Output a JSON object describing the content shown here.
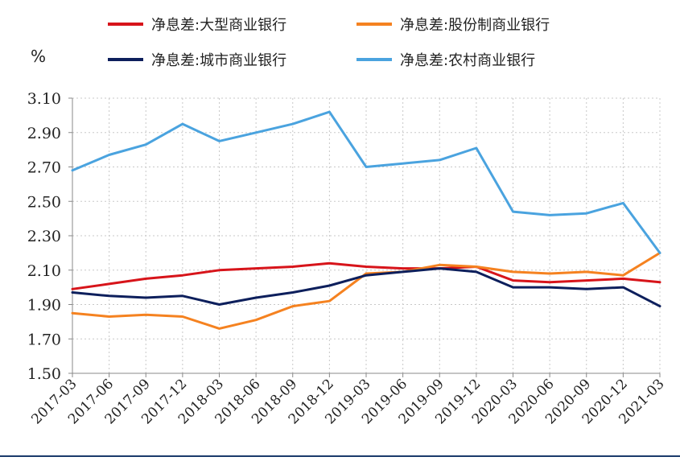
{
  "chart_data": {
    "type": "line",
    "unit": "%",
    "ylim": [
      1.5,
      3.1
    ],
    "yticks": [
      "3.10",
      "2.90",
      "2.70",
      "2.50",
      "2.30",
      "2.10",
      "1.90",
      "1.70",
      "1.50"
    ],
    "ytick_values": [
      3.1,
      2.9,
      2.7,
      2.5,
      2.3,
      2.1,
      1.9,
      1.7,
      1.5
    ],
    "categories": [
      "2017-03",
      "2017-06",
      "2017-09",
      "2017-12",
      "2018-03",
      "2018-06",
      "2018-09",
      "2018-12",
      "2019-03",
      "2019-06",
      "2019-09",
      "2019-12",
      "2020-03",
      "2020-06",
      "2020-09",
      "2020-12",
      "2021-03"
    ],
    "grid": true,
    "legend_placement": "top",
    "series": [
      {
        "name": "净息差:大型商业银行",
        "color": "#d7141a",
        "values": [
          1.99,
          2.02,
          2.05,
          2.07,
          2.1,
          2.11,
          2.12,
          2.14,
          2.12,
          2.11,
          2.11,
          2.12,
          2.04,
          2.03,
          2.04,
          2.05,
          2.03
        ]
      },
      {
        "name": "净息差:股份制商业银行",
        "color": "#f58220",
        "values": [
          1.85,
          1.83,
          1.84,
          1.83,
          1.76,
          1.81,
          1.89,
          1.92,
          2.08,
          2.09,
          2.13,
          2.12,
          2.09,
          2.08,
          2.09,
          2.07,
          2.2
        ]
      },
      {
        "name": "净息差:城市商业银行",
        "color": "#0d1f5c",
        "values": [
          1.97,
          1.95,
          1.94,
          1.95,
          1.9,
          1.94,
          1.97,
          2.01,
          2.07,
          2.09,
          2.11,
          2.09,
          2.0,
          2.0,
          1.99,
          2.0,
          1.89
        ]
      },
      {
        "name": "净息差:农村商业银行",
        "color": "#4aa3df",
        "values": [
          2.68,
          2.77,
          2.83,
          2.95,
          2.85,
          2.9,
          2.95,
          3.02,
          2.7,
          2.72,
          2.74,
          2.81,
          2.44,
          2.42,
          2.43,
          2.49,
          2.2
        ]
      }
    ]
  }
}
